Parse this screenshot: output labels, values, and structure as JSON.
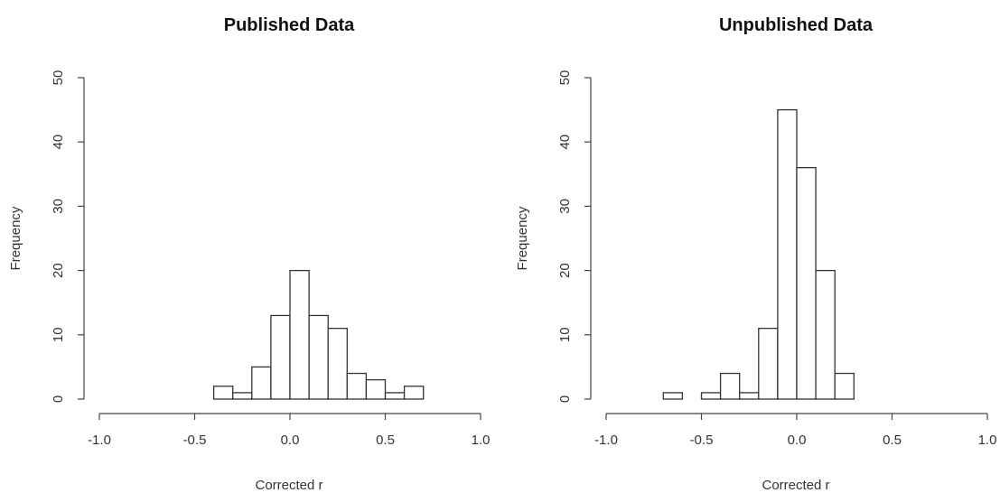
{
  "chart_data": [
    {
      "type": "bar",
      "title": "Published Data",
      "xlabel": "Corrected r",
      "ylabel": "Frequency",
      "xlim": [
        -1.0,
        1.0
      ],
      "ylim": [
        0,
        50
      ],
      "x_ticks": [
        "-1.0",
        "-0.5",
        "0.0",
        "0.5",
        "1.0"
      ],
      "y_ticks": [
        "0",
        "10",
        "20",
        "30",
        "40",
        "50"
      ],
      "grid": false,
      "bins": [
        {
          "from": -0.4,
          "to": -0.3,
          "count": 2
        },
        {
          "from": -0.3,
          "to": -0.2,
          "count": 1
        },
        {
          "from": -0.2,
          "to": -0.1,
          "count": 5
        },
        {
          "from": -0.1,
          "to": 0.0,
          "count": 13
        },
        {
          "from": 0.0,
          "to": 0.1,
          "count": 20
        },
        {
          "from": 0.1,
          "to": 0.2,
          "count": 13
        },
        {
          "from": 0.2,
          "to": 0.3,
          "count": 11
        },
        {
          "from": 0.3,
          "to": 0.4,
          "count": 4
        },
        {
          "from": 0.4,
          "to": 0.5,
          "count": 3
        },
        {
          "from": 0.5,
          "to": 0.6,
          "count": 1
        },
        {
          "from": 0.6,
          "to": 0.7,
          "count": 2
        }
      ]
    },
    {
      "type": "bar",
      "title": "Unpublished Data",
      "xlabel": "Corrected r",
      "ylabel": "Frequency",
      "xlim": [
        -1.0,
        1.0
      ],
      "ylim": [
        0,
        50
      ],
      "x_ticks": [
        "-1.0",
        "-0.5",
        "0.0",
        "0.5",
        "1.0"
      ],
      "y_ticks": [
        "0",
        "10",
        "20",
        "30",
        "40",
        "50"
      ],
      "grid": false,
      "bins": [
        {
          "from": -0.7,
          "to": -0.6,
          "count": 1
        },
        {
          "from": -0.6,
          "to": -0.5,
          "count": 0
        },
        {
          "from": -0.5,
          "to": -0.4,
          "count": 1
        },
        {
          "from": -0.4,
          "to": -0.3,
          "count": 4
        },
        {
          "from": -0.3,
          "to": -0.2,
          "count": 1
        },
        {
          "from": -0.2,
          "to": -0.1,
          "count": 11
        },
        {
          "from": -0.1,
          "to": 0.0,
          "count": 45
        },
        {
          "from": 0.0,
          "to": 0.1,
          "count": 36
        },
        {
          "from": 0.1,
          "to": 0.2,
          "count": 20
        },
        {
          "from": 0.2,
          "to": 0.3,
          "count": 4
        }
      ]
    }
  ]
}
